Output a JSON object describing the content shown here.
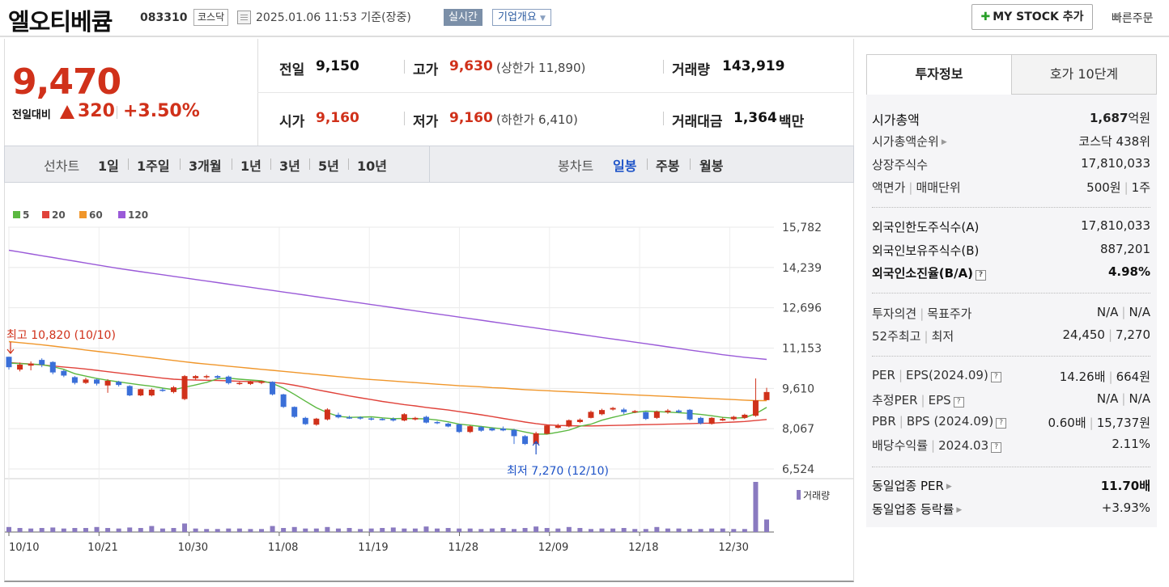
{
  "header": {
    "stock_name": "엘오티베큠",
    "stock_code": "083310",
    "market": "코스닥",
    "date_text": "2025.01.06 11:53  기준(장중)",
    "realtime_label": "실시간",
    "company_label": "기업개요",
    "mystock_label": "MY STOCK 추가",
    "quick_order_label": "빠른주문"
  },
  "price": {
    "current": "9,470",
    "change_label": "전일대비",
    "change_value": "320",
    "change_rate": "+3.50%"
  },
  "quote": {
    "prev_label": "전일",
    "prev_value": "9,150",
    "high_label": "고가",
    "high_value": "9,630",
    "upper_limit": "(상한가 11,890)",
    "volume_label": "거래량",
    "volume_value": "143,919",
    "open_label": "시가",
    "open_value": "9,160",
    "low_label": "저가",
    "low_value": "9,160",
    "lower_limit": "(하한가 6,410)",
    "amount_label": "거래대금",
    "amount_value": "1,364",
    "amount_unit": "백만"
  },
  "toolbar": {
    "line_label": "선차트",
    "periods": [
      "1일",
      "1주일",
      "3개월",
      "1년",
      "3년",
      "5년",
      "10년"
    ],
    "candle_label": "봉차트",
    "candles": [
      "일봉",
      "주봉",
      "월봉"
    ],
    "active_candle": "일봉"
  },
  "chart_data": {
    "type": "candlestick",
    "legend": [
      "5",
      "20",
      "60",
      "120"
    ],
    "ma_colors": [
      "#5bb840",
      "#e0423a",
      "#f0962a",
      "#9a5ad8"
    ],
    "up_color": "#d0311a",
    "down_color": "#3a6fd8",
    "volume_color": "#8a7ac0",
    "volume_label": "거래량",
    "y_ticks": [
      "15,782",
      "14,239",
      "12,696",
      "11,153",
      "9,610",
      "8,067",
      "6,524"
    ],
    "ylim": [
      6524,
      15782
    ],
    "x_ticks": [
      "10/10",
      "10/21",
      "10/30",
      "11/08",
      "11/19",
      "11/28",
      "12/09",
      "12/18",
      "12/30"
    ],
    "high_annotation": "최고 10,820 (10/10)",
    "low_annotation": "최저 7,270 (12/10)",
    "candles": [
      {
        "o": 10820,
        "c": 10420,
        "h": 10820,
        "l": 10330
      },
      {
        "o": 10330,
        "c": 10520,
        "h": 10600,
        "l": 10260
      },
      {
        "o": 10480,
        "c": 10560,
        "h": 10640,
        "l": 10300
      },
      {
        "o": 10700,
        "c": 10520,
        "h": 10760,
        "l": 10420
      },
      {
        "o": 10620,
        "c": 10220,
        "h": 10650,
        "l": 10150
      },
      {
        "o": 10280,
        "c": 10100,
        "h": 10320,
        "l": 10040
      },
      {
        "o": 10040,
        "c": 9820,
        "h": 10080,
        "l": 9760
      },
      {
        "o": 9820,
        "c": 9950,
        "h": 10020,
        "l": 9780
      },
      {
        "o": 9950,
        "c": 9790,
        "h": 9980,
        "l": 9720
      },
      {
        "o": 9720,
        "c": 9900,
        "h": 9960,
        "l": 9440
      },
      {
        "o": 9860,
        "c": 9740,
        "h": 9900,
        "l": 9680
      },
      {
        "o": 9700,
        "c": 9340,
        "h": 9730,
        "l": 9310
      },
      {
        "o": 9340,
        "c": 9580,
        "h": 9600,
        "l": 9310
      },
      {
        "o": 9340,
        "c": 9560,
        "h": 9610,
        "l": 9300
      },
      {
        "o": 9560,
        "c": 9520,
        "h": 9620,
        "l": 9480
      },
      {
        "o": 9470,
        "c": 9650,
        "h": 9700,
        "l": 9420
      },
      {
        "o": 9200,
        "c": 10080,
        "h": 10120,
        "l": 9160
      },
      {
        "o": 10000,
        "c": 10080,
        "h": 10120,
        "l": 9940
      },
      {
        "o": 10040,
        "c": 10080,
        "h": 10130,
        "l": 9980
      },
      {
        "o": 10080,
        "c": 10020,
        "h": 10120,
        "l": 9970
      },
      {
        "o": 10060,
        "c": 9810,
        "h": 10100,
        "l": 9760
      },
      {
        "o": 9800,
        "c": 9820,
        "h": 9860,
        "l": 9740
      },
      {
        "o": 9780,
        "c": 9880,
        "h": 9900,
        "l": 9740
      },
      {
        "o": 9820,
        "c": 9880,
        "h": 9900,
        "l": 9770
      },
      {
        "o": 9860,
        "c": 9380,
        "h": 9880,
        "l": 9340
      },
      {
        "o": 9380,
        "c": 8900,
        "h": 9400,
        "l": 8860
      },
      {
        "o": 8900,
        "c": 8520,
        "h": 8920,
        "l": 8480
      },
      {
        "o": 8480,
        "c": 8240,
        "h": 8520,
        "l": 8210
      },
      {
        "o": 8220,
        "c": 8450,
        "h": 8480,
        "l": 8180
      },
      {
        "o": 8420,
        "c": 8800,
        "h": 8850,
        "l": 8380
      },
      {
        "o": 8600,
        "c": 8500,
        "h": 8680,
        "l": 8460
      },
      {
        "o": 8500,
        "c": 8480,
        "h": 8560,
        "l": 8440
      },
      {
        "o": 8500,
        "c": 8460,
        "h": 8540,
        "l": 8410
      },
      {
        "o": 8460,
        "c": 8420,
        "h": 8500,
        "l": 8380
      },
      {
        "o": 8440,
        "c": 8420,
        "h": 8480,
        "l": 8380
      },
      {
        "o": 8440,
        "c": 8380,
        "h": 8500,
        "l": 8340
      },
      {
        "o": 8380,
        "c": 8620,
        "h": 8660,
        "l": 8350
      },
      {
        "o": 8420,
        "c": 8480,
        "h": 8520,
        "l": 8380
      },
      {
        "o": 8520,
        "c": 8300,
        "h": 8560,
        "l": 8270
      },
      {
        "o": 8320,
        "c": 8280,
        "h": 8360,
        "l": 8240
      },
      {
        "o": 8260,
        "c": 8150,
        "h": 8290,
        "l": 8120
      },
      {
        "o": 8230,
        "c": 7940,
        "h": 8260,
        "l": 7900
      },
      {
        "o": 7940,
        "c": 8160,
        "h": 8200,
        "l": 7900
      },
      {
        "o": 8130,
        "c": 7990,
        "h": 8170,
        "l": 7950
      },
      {
        "o": 8080,
        "c": 8000,
        "h": 8120,
        "l": 7970
      },
      {
        "o": 8070,
        "c": 8000,
        "h": 8150,
        "l": 7970
      },
      {
        "o": 8020,
        "c": 7780,
        "h": 8060,
        "l": 7480
      },
      {
        "o": 7780,
        "c": 7480,
        "h": 7820,
        "l": 7440
      },
      {
        "o": 7480,
        "c": 7890,
        "h": 7950,
        "l": 7270
      },
      {
        "o": 7870,
        "c": 8190,
        "h": 8220,
        "l": 7850
      },
      {
        "o": 8100,
        "c": 8180,
        "h": 8250,
        "l": 8080
      },
      {
        "o": 8150,
        "c": 8390,
        "h": 8420,
        "l": 8120
      },
      {
        "o": 8320,
        "c": 8410,
        "h": 8460,
        "l": 8280
      },
      {
        "o": 8480,
        "c": 8710,
        "h": 8760,
        "l": 8460
      },
      {
        "o": 8620,
        "c": 8780,
        "h": 8830,
        "l": 8580
      },
      {
        "o": 8800,
        "c": 8860,
        "h": 8900,
        "l": 8760
      },
      {
        "o": 8800,
        "c": 8700,
        "h": 8860,
        "l": 8620
      },
      {
        "o": 8720,
        "c": 8740,
        "h": 8780,
        "l": 8660
      },
      {
        "o": 8700,
        "c": 8440,
        "h": 8720,
        "l": 8400
      },
      {
        "o": 8480,
        "c": 8720,
        "h": 8760,
        "l": 8440
      },
      {
        "o": 8700,
        "c": 8760,
        "h": 8820,
        "l": 8640
      },
      {
        "o": 8760,
        "c": 8700,
        "h": 8800,
        "l": 8660
      },
      {
        "o": 8790,
        "c": 8420,
        "h": 8820,
        "l": 8380
      },
      {
        "o": 8480,
        "c": 8270,
        "h": 8520,
        "l": 8230
      },
      {
        "o": 8250,
        "c": 8480,
        "h": 8510,
        "l": 8220
      },
      {
        "o": 8380,
        "c": 8440,
        "h": 8500,
        "l": 8360
      },
      {
        "o": 8430,
        "c": 8520,
        "h": 8560,
        "l": 8380
      },
      {
        "o": 8480,
        "c": 8600,
        "h": 8640,
        "l": 8440
      },
      {
        "o": 8560,
        "c": 9150,
        "h": 9990,
        "l": 8520
      },
      {
        "o": 9160,
        "c": 9470,
        "h": 9630,
        "l": 9160
      }
    ],
    "volume": [
      10,
      8,
      7,
      8,
      9,
      7,
      8,
      8,
      10,
      8,
      7,
      9,
      8,
      12,
      7,
      8,
      17,
      7,
      6,
      6,
      7,
      7,
      6,
      6,
      12,
      8,
      10,
      7,
      7,
      10,
      7,
      8,
      6,
      7,
      8,
      9,
      7,
      7,
      11,
      7,
      8,
      7,
      7,
      6,
      7,
      8,
      6,
      8,
      11,
      8,
      7,
      10,
      8,
      6,
      7,
      7,
      8,
      6,
      6,
      10,
      7,
      7,
      6,
      6,
      7,
      7,
      6,
      6,
      100,
      25
    ],
    "ma5": [
      10580,
      10560,
      10540,
      10520,
      10440,
      10340,
      10170,
      10080,
      9990,
      9920,
      9860,
      9800,
      9740,
      9690,
      9620,
      9560,
      9650,
      9740,
      9840,
      9980,
      10000,
      9960,
      9930,
      9900,
      9800,
      9620,
      9380,
      9120,
      8870,
      8680,
      8540,
      8500,
      8510,
      8520,
      8480,
      8450,
      8460,
      8450,
      8440,
      8400,
      8330,
      8240,
      8200,
      8150,
      8100,
      8060,
      8030,
      7940,
      7860,
      7860,
      7930,
      8010,
      8160,
      8240,
      8390,
      8500,
      8600,
      8690,
      8740,
      8720,
      8700,
      8680,
      8650,
      8610,
      8560,
      8500,
      8470,
      8490,
      8640,
      8880
    ],
    "ma20": [
      10600,
      10570,
      10540,
      10510,
      10470,
      10430,
      10390,
      10350,
      10300,
      10250,
      10200,
      10150,
      10100,
      10050,
      10000,
      9960,
      9940,
      9930,
      9920,
      9910,
      9900,
      9880,
      9870,
      9860,
      9840,
      9800,
      9730,
      9650,
      9560,
      9480,
      9400,
      9320,
      9250,
      9180,
      9110,
      9050,
      8990,
      8940,
      8880,
      8830,
      8780,
      8720,
      8660,
      8600,
      8530,
      8460,
      8390,
      8320,
      8260,
      8210,
      8190,
      8180,
      8170,
      8170,
      8180,
      8190,
      8200,
      8210,
      8220,
      8230,
      8240,
      8250,
      8260,
      8270,
      8280,
      8300,
      8320,
      8340,
      8380,
      8420
    ],
    "ma60": [
      11400,
      11360,
      11320,
      11280,
      11230,
      11180,
      11130,
      11080,
      11030,
      10980,
      10930,
      10880,
      10830,
      10780,
      10730,
      10680,
      10630,
      10580,
      10540,
      10500,
      10460,
      10420,
      10380,
      10340,
      10300,
      10260,
      10220,
      10180,
      10140,
      10100,
      10060,
      10020,
      9980,
      9950,
      9920,
      9890,
      9860,
      9830,
      9800,
      9770,
      9740,
      9710,
      9690,
      9670,
      9640,
      9620,
      9590,
      9560,
      9540,
      9520,
      9500,
      9480,
      9460,
      9440,
      9420,
      9400,
      9380,
      9360,
      9340,
      9320,
      9300,
      9280,
      9260,
      9240,
      9220,
      9200,
      9180,
      9160,
      9140,
      9140
    ],
    "ma120": [
      14900,
      14830,
      14760,
      14690,
      14620,
      14550,
      14480,
      14410,
      14340,
      14270,
      14200,
      14140,
      14080,
      14020,
      13960,
      13900,
      13840,
      13780,
      13720,
      13660,
      13600,
      13540,
      13480,
      13420,
      13360,
      13300,
      13240,
      13180,
      13120,
      13060,
      13000,
      12940,
      12880,
      12820,
      12760,
      12700,
      12640,
      12580,
      12520,
      12460,
      12400,
      12340,
      12280,
      12220,
      12160,
      12100,
      12040,
      11980,
      11920,
      11860,
      11800,
      11740,
      11680,
      11620,
      11560,
      11500,
      11440,
      11380,
      11320,
      11260,
      11200,
      11140,
      11080,
      11020,
      10960,
      10900,
      10850,
      10800,
      10760,
      10720
    ]
  },
  "invest_info": {
    "tab_invest": "투자정보",
    "tab_hoga": "호가 10단계",
    "market_cap_label": "시가총액",
    "market_cap_value": "1,687",
    "market_cap_unit": "억원",
    "rank_label": "시가총액순위",
    "rank_value": "코스닥 438위",
    "shares_label": "상장주식수",
    "shares_value": "17,810,033",
    "par_label": "액면가",
    "unit_label": "매매단위",
    "par_value": "500원",
    "unit_value": "1주",
    "foreign_limit_label": "외국인한도주식수(A)",
    "foreign_limit_value": "17,810,033",
    "foreign_hold_label": "외국인보유주식수(B)",
    "foreign_hold_value": "887,201",
    "foreign_ratio_label": "외국인소진율(B/A)",
    "foreign_ratio_value": "4.98%",
    "opinion_label": "투자의견",
    "target_label": "목표주가",
    "opinion_value": "N/A",
    "target_value": "N/A",
    "high52_label": "52주최고",
    "low52_label": "최저",
    "high52_value": "24,450",
    "low52_value": "7,270",
    "per_label": "PER",
    "eps_label": "EPS(2024.09)",
    "per_value": "14.26배",
    "eps_value": "664원",
    "est_per_label": "추정PER",
    "est_eps_label": "EPS",
    "est_per_value": "N/A",
    "est_eps_value": "N/A",
    "pbr_label": "PBR",
    "bps_label": "BPS (2024.09)",
    "pbr_value": "0.60배",
    "bps_value": "15,737원",
    "div_label": "배당수익률",
    "div_date": "2024.03",
    "div_value": "2.11%",
    "sector_per_label": "동일업종 PER",
    "sector_per_value": "11.70배",
    "sector_rate_label": "동일업종 등락률",
    "sector_rate_value": "+3.93%"
  }
}
